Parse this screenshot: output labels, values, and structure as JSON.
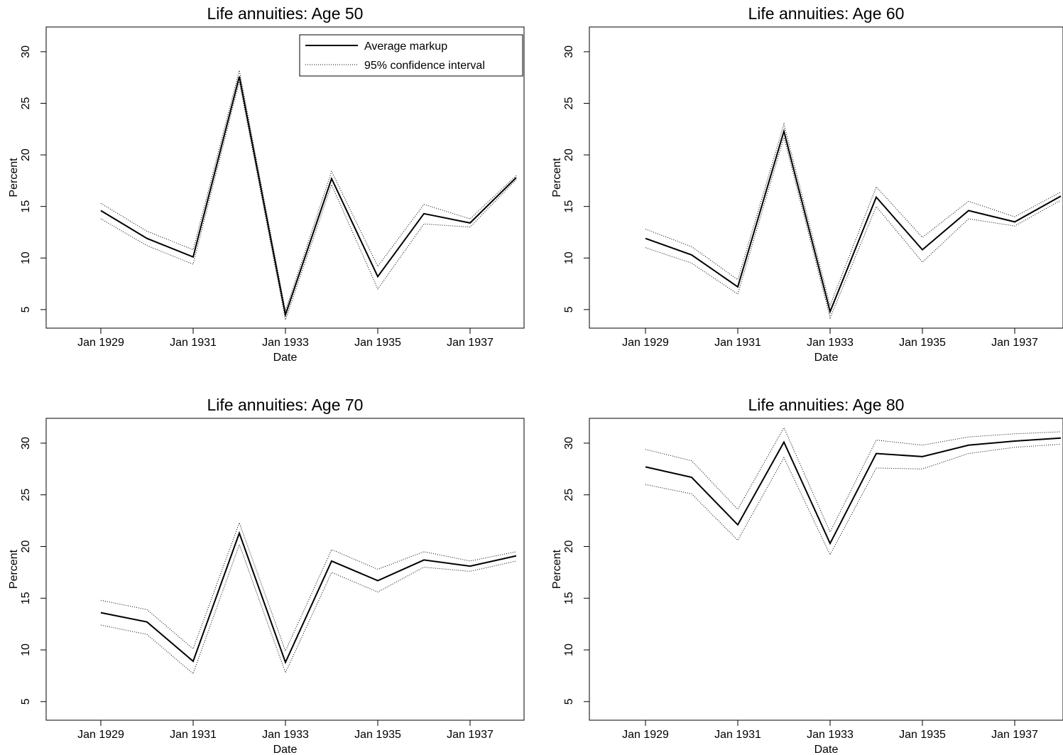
{
  "chart_data": [
    {
      "type": "line",
      "title": "Life annuities: Age 50",
      "xlabel": "Date",
      "ylabel": "Percent",
      "x": [
        "Jan 1929",
        "Jan 1930",
        "Jan 1931",
        "Jan 1932",
        "Jan 1933",
        "Jan 1934",
        "Jan 1935",
        "Jan 1936",
        "Jan 1937",
        "Jan 1938"
      ],
      "xticks": [
        "Jan 1929",
        "Jan 1931",
        "Jan 1933",
        "Jan 1935",
        "Jan 1937"
      ],
      "yticks": [
        5,
        10,
        15,
        20,
        25,
        30
      ],
      "ylim": [
        3.2,
        32.4
      ],
      "series": [
        {
          "name": "Average markup",
          "style": "solid",
          "values": [
            14.6,
            11.9,
            10.1,
            27.6,
            4.5,
            17.7,
            8.2,
            14.3,
            13.4,
            17.8
          ]
        },
        {
          "name": "95% confidence interval",
          "style": "dotted",
          "values": [
            15.3,
            12.6,
            10.8,
            28.2,
            4.9,
            18.4,
            9.2,
            15.2,
            13.8,
            18.0
          ]
        },
        {
          "name": "",
          "style": "dotted",
          "values": [
            13.8,
            11.2,
            9.4,
            27.1,
            4.0,
            17.1,
            7.0,
            13.3,
            13.0,
            17.6
          ]
        }
      ],
      "legend": {
        "position": "top-right",
        "entries": [
          {
            "label": "Average markup",
            "style": "solid"
          },
          {
            "label": "95% confidence interval",
            "style": "dotted"
          }
        ]
      }
    },
    {
      "type": "line",
      "title": "Life annuities: Age 60",
      "xlabel": "Date",
      "ylabel": "Percent",
      "x": [
        "Jan 1929",
        "Jan 1930",
        "Jan 1931",
        "Jan 1932",
        "Jan 1933",
        "Jan 1934",
        "Jan 1935",
        "Jan 1936",
        "Jan 1937",
        "Jan 1938"
      ],
      "xticks": [
        "Jan 1929",
        "Jan 1931",
        "Jan 1933",
        "Jan 1935",
        "Jan 1937"
      ],
      "yticks": [
        5,
        10,
        15,
        20,
        25,
        30
      ],
      "ylim": [
        3.2,
        32.4
      ],
      "series": [
        {
          "name": "Average markup",
          "style": "solid",
          "values": [
            11.9,
            10.3,
            7.2,
            22.3,
            4.8,
            15.9,
            10.8,
            14.6,
            13.5,
            16.0
          ]
        },
        {
          "name": "95% confidence interval",
          "style": "dotted",
          "values": [
            12.8,
            11.1,
            7.9,
            23.0,
            5.4,
            16.9,
            12.0,
            15.5,
            14.0,
            16.4
          ]
        },
        {
          "name": "",
          "style": "dotted",
          "values": [
            11.0,
            9.5,
            6.5,
            21.7,
            4.2,
            15.0,
            9.6,
            13.8,
            13.1,
            15.6
          ]
        }
      ]
    },
    {
      "type": "line",
      "title": "Life annuities: Age 70",
      "xlabel": "Date",
      "ylabel": "Percent",
      "x": [
        "Jan 1929",
        "Jan 1930",
        "Jan 1931",
        "Jan 1932",
        "Jan 1933",
        "Jan 1934",
        "Jan 1935",
        "Jan 1936",
        "Jan 1937",
        "Jan 1938"
      ],
      "xticks": [
        "Jan 1929",
        "Jan 1931",
        "Jan 1933",
        "Jan 1935",
        "Jan 1937"
      ],
      "yticks": [
        5,
        10,
        15,
        20,
        25,
        30
      ],
      "ylim": [
        3.2,
        32.4
      ],
      "series": [
        {
          "name": "Average markup",
          "style": "solid",
          "values": [
            13.6,
            12.7,
            8.9,
            21.3,
            8.8,
            18.6,
            16.7,
            18.7,
            18.1,
            19.1
          ]
        },
        {
          "name": "95% confidence interval",
          "style": "dotted",
          "values": [
            14.8,
            13.9,
            10.1,
            22.3,
            9.9,
            19.7,
            17.8,
            19.5,
            18.6,
            19.5
          ]
        },
        {
          "name": "",
          "style": "dotted",
          "values": [
            12.4,
            11.5,
            7.7,
            20.2,
            7.8,
            17.5,
            15.6,
            18.0,
            17.6,
            18.6
          ]
        }
      ]
    },
    {
      "type": "line",
      "title": "Life annuities: Age 80",
      "xlabel": "Date",
      "ylabel": "Percent",
      "x": [
        "Jan 1929",
        "Jan 1930",
        "Jan 1931",
        "Jan 1932",
        "Jan 1933",
        "Jan 1934",
        "Jan 1935",
        "Jan 1936",
        "Jan 1937",
        "Jan 1938"
      ],
      "xticks": [
        "Jan 1929",
        "Jan 1931",
        "Jan 1933",
        "Jan 1935",
        "Jan 1937"
      ],
      "yticks": [
        5,
        10,
        15,
        20,
        25,
        30
      ],
      "ylim": [
        3.2,
        32.4
      ],
      "series": [
        {
          "name": "Average markup",
          "style": "solid",
          "values": [
            27.7,
            26.7,
            22.1,
            30.1,
            20.3,
            29.0,
            28.7,
            29.8,
            30.2,
            30.5
          ]
        },
        {
          "name": "95% confidence interval",
          "style": "dotted",
          "values": [
            29.4,
            28.3,
            23.6,
            31.5,
            21.4,
            30.3,
            29.8,
            30.6,
            30.9,
            31.1
          ]
        },
        {
          "name": "",
          "style": "dotted",
          "values": [
            26.0,
            25.1,
            20.6,
            28.6,
            19.2,
            27.6,
            27.5,
            29.0,
            29.6,
            29.9
          ]
        }
      ]
    }
  ]
}
